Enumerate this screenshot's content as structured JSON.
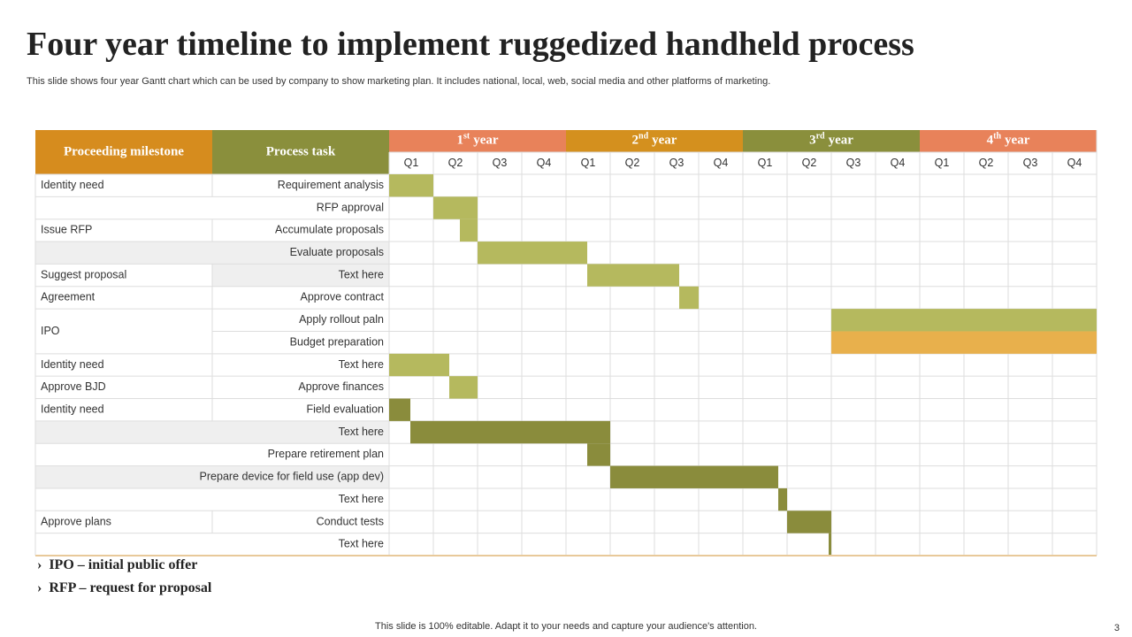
{
  "header": {
    "title": "Four year timeline to implement ruggedized handheld process",
    "subtitle": "This slide shows four year Gantt chart which can be used by company to  show marketing plan. It includes national, local, web, social media and other platforms of marketing."
  },
  "table": {
    "columns": [
      "Proceeding milestone",
      "Process task"
    ],
    "years": [
      {
        "num": "1",
        "sup": "st",
        "text": "year",
        "color": "#e8825a"
      },
      {
        "num": "2",
        "sup": "nd",
        "text": "year",
        "color": "#d4901e"
      },
      {
        "num": "3",
        "sup": "rd",
        "text": "year",
        "color": "#8a8f3c"
      },
      {
        "num": "4",
        "sup": "th",
        "text": "year",
        "color": "#e8825a"
      }
    ],
    "quarters": [
      "Q1",
      "Q2",
      "Q3",
      "Q4"
    ],
    "rows": [
      {
        "milestone": "Identity need",
        "task": "Requirement  analysis",
        "start": 0,
        "end": 1,
        "color": "#b5b95e"
      },
      {
        "milestone": null,
        "task": "RFP approval",
        "start": 1,
        "end": 2,
        "color": "#b5b95e"
      },
      {
        "milestone": "Issue RFP",
        "task": "Accumulate proposals",
        "start": 1.6,
        "end": 2,
        "color": "#b5b95e"
      },
      {
        "milestone": null,
        "task": "Evaluate  proposals",
        "start": 2,
        "end": 4.48,
        "color": "#b5b95e"
      },
      {
        "milestone": "Suggest proposal",
        "task": "Text here",
        "start": 4.48,
        "end": 6.56,
        "color": "#b5b95e"
      },
      {
        "milestone": "Agreement",
        "task": "Approve  contract",
        "start": 6.56,
        "end": 7,
        "color": "#b5b95e"
      },
      {
        "milestone": "IPO",
        "task": "Apply rollout  paln",
        "start": 10,
        "end": 16,
        "color": "#b5b95e"
      },
      {
        "milestone": null,
        "task": "Budget preparation",
        "start": 10,
        "end": 16,
        "color": "#e8b04c"
      },
      {
        "milestone": "Identity need",
        "task": "Text here",
        "start": 0,
        "end": 1.36,
        "color": "#b5b95e"
      },
      {
        "milestone": "Approve  BJD",
        "task": "Approve  finances",
        "start": 1.36,
        "end": 2,
        "color": "#b5b95e"
      },
      {
        "milestone": "Identity need",
        "task": "Field evaluation",
        "start": 0,
        "end": 0.48,
        "color": "#8a8c3c"
      },
      {
        "milestone": null,
        "task": "Text here",
        "start": 0.48,
        "end": 5,
        "color": "#8a8c3c"
      },
      {
        "milestone": null,
        "task": "Prepare  retirement plan",
        "start": 4.48,
        "end": 5,
        "color": "#8a8c3c"
      },
      {
        "milestone": null,
        "task": "Prepare device  for field use (app dev)",
        "start": 5,
        "end": 8.8,
        "color": "#8a8c3c"
      },
      {
        "milestone": null,
        "task": "Text here",
        "start": 8.8,
        "end": 9,
        "color": "#8a8c3c"
      },
      {
        "milestone": "Approve  plans",
        "task": "Conduct tests",
        "start": 9,
        "end": 10,
        "color": "#8a8c3c"
      },
      {
        "milestone": null,
        "task": "Text here",
        "start": 9.94,
        "end": 10,
        "color": "#8a8c3c"
      }
    ]
  },
  "notes": [
    {
      "term": "IPO",
      "text": "initial public offer"
    },
    {
      "term": "RFP",
      "text": "request for proposal"
    }
  ],
  "footer": {
    "text": "This slide is 100% editable. Adapt it to your needs and capture your audience's attention.",
    "page": "3"
  }
}
